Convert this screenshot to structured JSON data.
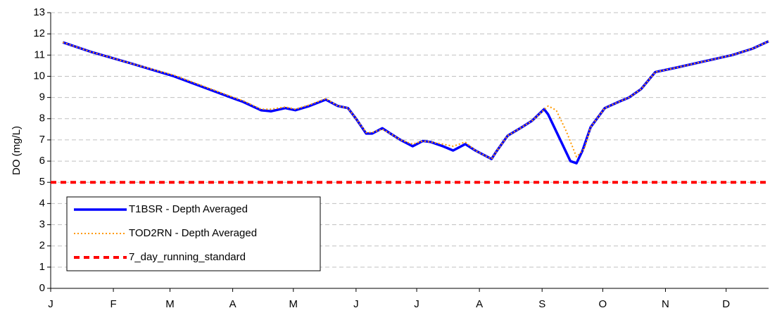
{
  "chart_data": {
    "type": "line",
    "y_label": "DO (mg/L)",
    "xlim": [
      0,
      355
    ],
    "xticks": [
      {
        "value": 0,
        "label": "J"
      },
      {
        "value": 31,
        "label": "F"
      },
      {
        "value": 59,
        "label": "M"
      },
      {
        "value": 90,
        "label": "A"
      },
      {
        "value": 120,
        "label": "M"
      },
      {
        "value": 151,
        "label": "J"
      },
      {
        "value": 181,
        "label": "J"
      },
      {
        "value": 212,
        "label": "A"
      },
      {
        "value": 243,
        "label": "S"
      },
      {
        "value": 273,
        "label": "O"
      },
      {
        "value": 304,
        "label": "N"
      },
      {
        "value": 334,
        "label": "D"
      }
    ],
    "ylim": [
      0,
      13
    ],
    "yticks": [
      0,
      1,
      2,
      3,
      4,
      5,
      6,
      7,
      8,
      9,
      10,
      11,
      12,
      13
    ],
    "grid": true,
    "legend": "lower left",
    "series": [
      {
        "name": "T1BSR - Depth Averaged",
        "color": "#0000ff",
        "style": "solid",
        "x": [
          6,
          20,
          40,
          61,
          92,
          95,
          104,
          109,
          116,
          121,
          128,
          136,
          142,
          147,
          151,
          156,
          159,
          164,
          168,
          173,
          179,
          184,
          188,
          194,
          199,
          205,
          210,
          218,
          220,
          226,
          233,
          238,
          244,
          246,
          252,
          257,
          260,
          263,
          267,
          274,
          281,
          286,
          292,
          299,
          309,
          323,
          337,
          347,
          355
        ],
        "values": [
          11.6,
          11.15,
          10.6,
          10.0,
          8.9,
          8.8,
          8.4,
          8.35,
          8.5,
          8.4,
          8.6,
          8.9,
          8.6,
          8.5,
          8.0,
          7.3,
          7.3,
          7.55,
          7.3,
          7.0,
          6.7,
          6.95,
          6.9,
          6.7,
          6.5,
          6.8,
          6.5,
          6.1,
          6.4,
          7.2,
          7.6,
          7.9,
          8.45,
          8.2,
          7.0,
          6.0,
          5.9,
          6.5,
          7.6,
          8.5,
          8.8,
          9.0,
          9.4,
          10.2,
          10.4,
          10.7,
          11.0,
          11.3,
          11.65
        ]
      },
      {
        "name": "TOD2RN - Depth Averaged",
        "color": "#ff9900",
        "style": "dotted",
        "x": [
          6,
          20,
          40,
          61,
          92,
          95,
          104,
          109,
          116,
          121,
          128,
          136,
          142,
          147,
          151,
          156,
          159,
          164,
          168,
          173,
          179,
          184,
          188,
          194,
          199,
          205,
          210,
          218,
          220,
          226,
          233,
          238,
          246,
          250,
          255,
          260,
          264,
          267,
          274,
          281,
          286,
          292,
          299,
          309,
          323,
          337,
          347,
          355
        ],
        "values": [
          11.6,
          11.15,
          10.6,
          10.05,
          8.95,
          8.85,
          8.45,
          8.45,
          8.55,
          8.45,
          8.65,
          8.95,
          8.6,
          8.5,
          8.0,
          7.35,
          7.35,
          7.5,
          7.3,
          7.0,
          6.8,
          6.95,
          6.9,
          6.8,
          6.7,
          6.9,
          6.5,
          6.1,
          6.4,
          7.2,
          7.6,
          7.9,
          8.6,
          8.4,
          7.4,
          6.2,
          6.6,
          7.6,
          8.5,
          8.8,
          9.0,
          9.4,
          10.2,
          10.4,
          10.7,
          11.0,
          11.3,
          11.65
        ]
      },
      {
        "name": "7_day_running_standard",
        "color": "#ff0000",
        "style": "dashed",
        "x": [
          0,
          355
        ],
        "values": [
          5,
          5
        ]
      }
    ]
  }
}
